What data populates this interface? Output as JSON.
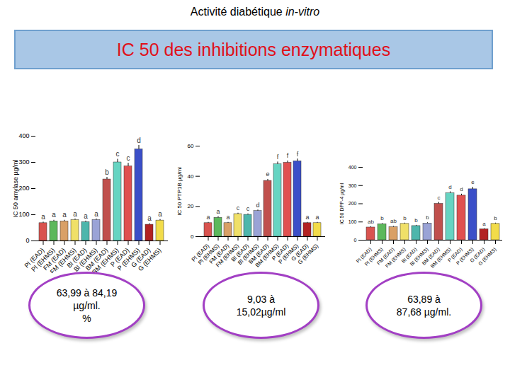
{
  "title": {
    "text": "Activité diabétique",
    "italic": "in-vitro"
  },
  "banner": "IC 50  des inhibitions enzymatiques",
  "chart_data": [
    {
      "type": "bar",
      "y_label": "IC 50 amylase µg/ml",
      "categories": [
        "Pl (EAD)",
        "Pl (EHMS)",
        "FM (EAD)",
        "FM (EHMS)",
        "Bl (EAD)",
        "Bl (EHMS)",
        "BM (EAD)",
        "BM (EHMS)",
        "P (EAD)",
        "P (EHMS)",
        "G (EAD)",
        "G (EHMS)"
      ],
      "values": [
        68,
        75,
        75,
        80,
        72,
        80,
        235,
        300,
        285,
        350,
        62,
        78
      ],
      "errors": [
        4,
        4,
        4,
        4,
        4,
        4,
        8,
        12,
        12,
        15,
        4,
        4
      ],
      "letters": [
        "a",
        "a",
        "a",
        "a",
        "a",
        "a",
        "b",
        "c",
        "c",
        "d",
        "a",
        "a"
      ],
      "colors": [
        "#d9534f",
        "#5cb85c",
        "#d9a066",
        "#f0e068",
        "#4db6ac",
        "#9aa3d6",
        "#c0504d",
        "#66d4c2",
        "#e05050",
        "#3b4fc8",
        "#b22222",
        "#f2dc4a"
      ],
      "ylim": [
        0,
        400
      ],
      "yticks": [
        0,
        100,
        200,
        300,
        400
      ]
    },
    {
      "type": "bar",
      "y_label": "IC 50 PTP1B µg/ml",
      "categories": [
        "Pl (EAD)",
        "Pl (EHMS)",
        "FM (EAD)",
        "FM (EHMS)",
        "Bl (EAD)",
        "Bl (EHMS)",
        "BM (EAD)",
        "BM (EHMS)",
        "P (EAD)",
        "P (EHMS)",
        "G (EAD)",
        "G (EHMS)"
      ],
      "values": [
        9,
        12.5,
        9,
        15,
        14.5,
        17,
        37,
        48,
        49,
        50,
        9,
        9
      ],
      "errors": [
        0.5,
        0.8,
        0.5,
        0.6,
        0.6,
        0.7,
        1,
        1.5,
        1.2,
        1.5,
        0.5,
        0.5
      ],
      "letters": [
        "a",
        "a",
        "a",
        "c",
        "c",
        "d",
        "e",
        "f",
        "f",
        "f",
        "a",
        "a"
      ],
      "colors": [
        "#d9534f",
        "#5cb85c",
        "#d9a066",
        "#f0e068",
        "#4db6ac",
        "#9aa3d6",
        "#c0504d",
        "#66d4c2",
        "#e05050",
        "#3b4fc8",
        "#b22222",
        "#f2dc4a"
      ],
      "ylim": [
        0,
        60
      ],
      "yticks": [
        0,
        20,
        40,
        60
      ]
    },
    {
      "type": "bar",
      "y_label": "IC 50 DPP-4 µg/ml",
      "categories": [
        "Pl (EAD)",
        "Pl (EHMS)",
        "FM (EAD)",
        "FM (EHMS)",
        "Bl (EAD)",
        "Bl (EHMS)",
        "BM (EAD)",
        "BM (EHMS)",
        "P (EAD)",
        "P (EHMS)",
        "G (EAD)",
        "G (EHMS)"
      ],
      "values": [
        70,
        88,
        72,
        90,
        78,
        92,
        200,
        258,
        245,
        280,
        60,
        90
      ],
      "errors": [
        4,
        4,
        4,
        4,
        4,
        4,
        8,
        8,
        8,
        10,
        4,
        4
      ],
      "letters": [
        "ab",
        "b",
        "ab",
        "b",
        "b",
        "b",
        "c",
        "d",
        "d",
        "e",
        "a",
        "b"
      ],
      "colors": [
        "#d9534f",
        "#5cb85c",
        "#d9a066",
        "#f0e068",
        "#4db6ac",
        "#9aa3d6",
        "#c0504d",
        "#66d4c2",
        "#e05050",
        "#3b4fc8",
        "#b22222",
        "#f2dc4a"
      ],
      "ylim": [
        0,
        400
      ],
      "yticks": [
        0,
        100,
        200,
        300,
        400
      ]
    }
  ],
  "notes": [
    [
      "63,99 à 84,19",
      "µg/ml.",
      "%"
    ],
    [
      "9,03 à",
      "15,02µg/ml"
    ],
    [
      "63,89 à",
      "87,68 µg/ml."
    ]
  ]
}
